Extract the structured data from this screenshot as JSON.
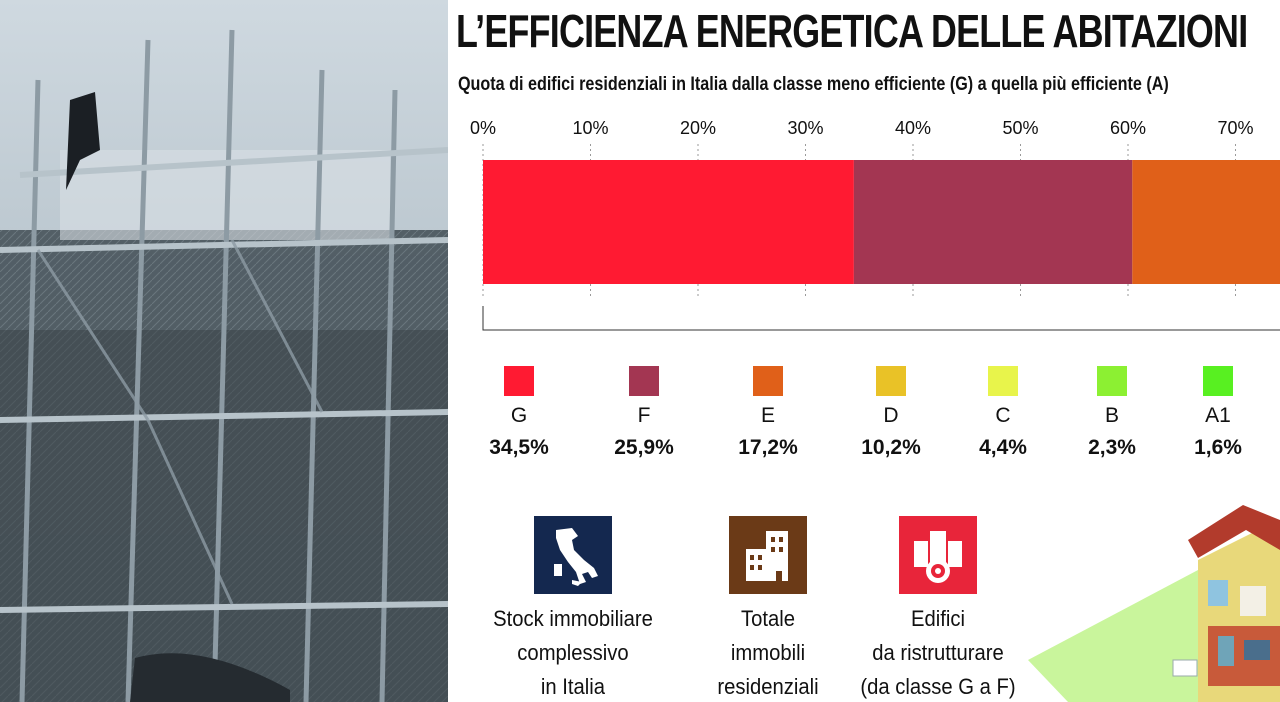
{
  "header": {
    "title": "L’EFFICIENZA ENERGETICA DELLE ABITAZIONI",
    "subtitle": "Quota di edifici residenziali in Italia dalla classe meno efficiente (G) a quella più efficiente (A)"
  },
  "chart_data": {
    "type": "bar",
    "orientation": "horizontal-stacked",
    "categories": [
      "G",
      "F",
      "E",
      "D",
      "C",
      "B",
      "A1"
    ],
    "values": [
      34.5,
      25.9,
      17.2,
      10.2,
      4.4,
      2.3,
      1.6
    ],
    "value_labels": [
      "34,5%",
      "25,9%",
      "17,2%",
      "10,2%",
      "4,4%",
      "2,3%",
      "1,6%"
    ],
    "colors": [
      "#ff1a32",
      "#a33652",
      "#e06019",
      "#e9c227",
      "#e8f44b",
      "#8cf032",
      "#58f021"
    ],
    "x_ticks": [
      "0%",
      "10%",
      "20%",
      "30%",
      "40%",
      "50%",
      "60%",
      "70%"
    ],
    "xlim": [
      0,
      74
    ],
    "grid": true,
    "legend": "bottom"
  },
  "stats": [
    {
      "text": "Stock immobiliare\ncomplessivo\nin Italia",
      "icon": "italy-map-icon",
      "color": "#14284f"
    },
    {
      "text": "Totale\nimmobili\nresidenziali",
      "icon": "buildings-icon",
      "color": "#6b3a17"
    },
    {
      "text": "Edifici\nda ristrutturare\n(da classe G a F)",
      "icon": "buildings-gear-icon",
      "color": "#e8253a"
    }
  ],
  "photo": {
    "icon": "scaffolding-photo"
  }
}
